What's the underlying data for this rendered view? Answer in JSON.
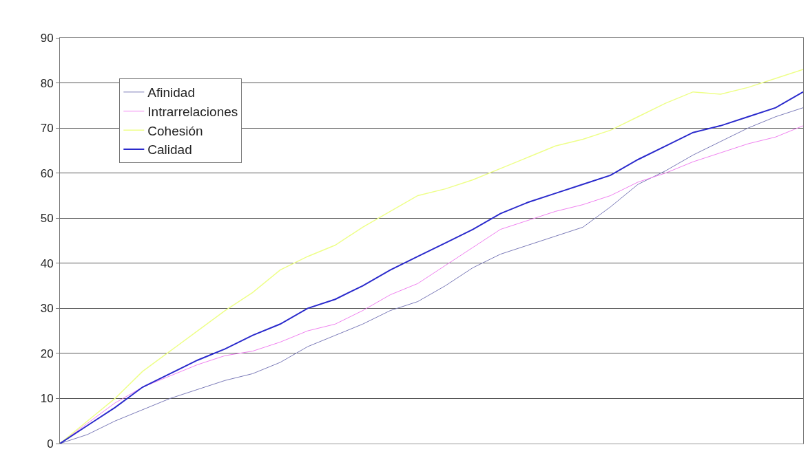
{
  "chart_data": {
    "type": "line",
    "categories": [
      null,
      null,
      null,
      null,
      null,
      null,
      null,
      null,
      null,
      null,
      null,
      null,
      null,
      null,
      null,
      null,
      null,
      null,
      null,
      null,
      null,
      null,
      null,
      null,
      null,
      null,
      null,
      null
    ],
    "ylim": [
      0,
      90
    ],
    "yticks": [
      0,
      10,
      20,
      30,
      40,
      50,
      60,
      70,
      80,
      90
    ],
    "grid": "y",
    "legend": "top left",
    "line_style": "solid",
    "marker": "none",
    "series": [
      {
        "name": "Afinidad",
        "color": "#7a7ab8",
        "values": [
          0,
          2,
          5,
          7.5,
          10,
          12,
          14,
          15.5,
          18,
          21.5,
          24,
          26.5,
          29.5,
          31.5,
          35,
          39,
          42,
          44,
          46,
          48,
          52.5,
          57.5,
          60.5,
          64,
          67,
          70,
          72.5,
          74.5
        ]
      },
      {
        "name": "Intrarrelaciones",
        "color": "#f080f0",
        "values": [
          0,
          4.5,
          9,
          12.5,
          15,
          17.5,
          19.5,
          20.5,
          22.5,
          25,
          26.5,
          29.5,
          33,
          35.5,
          39.5,
          43.5,
          47.5,
          49.5,
          51.5,
          53,
          55,
          58,
          60,
          62.5,
          64.5,
          66.5,
          68,
          70.5
        ]
      },
      {
        "name": "Cohesión",
        "color": "#eeff88",
        "values": [
          0,
          5,
          10,
          16,
          20.5,
          25,
          29.5,
          33.5,
          38.5,
          41.5,
          44,
          48,
          51.5,
          55,
          56.5,
          58.5,
          61,
          63.5,
          66,
          67.5,
          69.5,
          72.5,
          75.5,
          78,
          77.5,
          79,
          81,
          83
        ]
      },
      {
        "name": "Calidad",
        "color": "#2a2acc",
        "values": [
          0,
          4,
          8,
          12.5,
          15.5,
          18.5,
          21,
          24,
          26.5,
          30,
          32,
          35,
          38.5,
          41.5,
          44.5,
          47.5,
          51,
          53.5,
          55.5,
          57.5,
          59.5,
          63,
          66,
          69,
          70.5,
          72.5,
          74.5,
          78
        ]
      }
    ]
  }
}
